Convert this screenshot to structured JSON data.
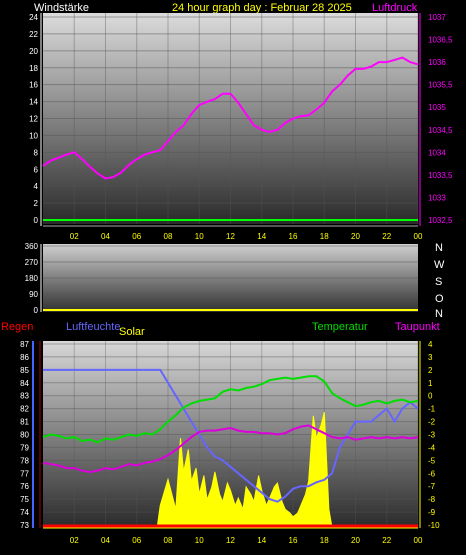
{
  "header": {
    "left_label": "Windstärke",
    "title": "24 hour graph day : Februar 28 2025",
    "right_label": "Luftdruck"
  },
  "direction_labels": [
    "N",
    "W",
    "S",
    "O",
    "N"
  ],
  "bottom_header": {
    "regen": "Regen",
    "luftfeuchte": "Luftfeuchte",
    "solar": "Solar",
    "temperatur": "Temperatur",
    "taupunkt": "Taupunkt"
  },
  "colors": {
    "background": "#000000",
    "axis_label": "#ffffff",
    "tick_label": "#ffffff",
    "x_tick_label": "#ffff00",
    "pressure": "#ff00ff",
    "wind": "#00ff00",
    "humidity": "#6666ff",
    "solar": "#ffff00",
    "temperature": "#00dd00",
    "dewpoint": "#dd00dd",
    "rain": "#ff0000",
    "title": "#ffff00"
  },
  "chart_data": [
    {
      "type": "line",
      "panel": "top",
      "x_ticks": [
        "02",
        "04",
        "06",
        "08",
        "10",
        "12",
        "14",
        "16",
        "18",
        "20",
        "22",
        "00"
      ],
      "y_left_ticks": [
        "0",
        "2",
        "4",
        "6",
        "8",
        "10",
        "12",
        "14",
        "16",
        "18",
        "20",
        "22",
        "24"
      ],
      "y_right_ticks": [
        "1032,5",
        "1033",
        "1033,5",
        "1034",
        "1034,5",
        "1035",
        "1035,5",
        "1036",
        "1036,5",
        "1037"
      ],
      "ylim_left": [
        0,
        24
      ],
      "ylim_right": [
        1032.5,
        1037
      ],
      "xlim": [
        0,
        24
      ],
      "grid": true,
      "series": [
        {
          "name": "Luftdruck",
          "axis": "right",
          "x": [
            0,
            0.5,
            1,
            1.5,
            2,
            2.5,
            3,
            3.5,
            4,
            4.5,
            5,
            5.5,
            6,
            6.5,
            7,
            7.5,
            8,
            8.5,
            9,
            9.5,
            10,
            10.5,
            11,
            11.5,
            12,
            12.5,
            13,
            13.5,
            14,
            14.5,
            15,
            15.5,
            16,
            16.5,
            17,
            17.5,
            18,
            18.5,
            19,
            19.5,
            20,
            20.5,
            21,
            21.5,
            22,
            22.5,
            23,
            23.5,
            24
          ],
          "values": [
            1033.7,
            1033.82,
            1033.88,
            1033.95,
            1034.0,
            1033.85,
            1033.68,
            1033.53,
            1033.42,
            1033.45,
            1033.55,
            1033.72,
            1033.85,
            1033.95,
            1034.0,
            1034.05,
            1034.25,
            1034.45,
            1034.6,
            1034.85,
            1035.05,
            1035.12,
            1035.18,
            1035.3,
            1035.3,
            1035.1,
            1034.85,
            1034.6,
            1034.5,
            1034.45,
            1034.5,
            1034.65,
            1034.75,
            1034.8,
            1034.82,
            1034.95,
            1035.1,
            1035.35,
            1035.5,
            1035.7,
            1035.85,
            1035.85,
            1035.9,
            1036.0,
            1036.0,
            1036.05,
            1036.1,
            1036.0,
            1035.95
          ]
        },
        {
          "name": "Windstärke",
          "axis": "left",
          "x": [
            0,
            24
          ],
          "values": [
            0,
            0
          ]
        }
      ]
    },
    {
      "type": "line",
      "panel": "wind_direction",
      "y_ticks": [
        "360",
        "270",
        "180",
        "90",
        "0"
      ],
      "ylim": [
        0,
        360
      ],
      "xlim": [
        0,
        24
      ],
      "grid": true,
      "series": [
        {
          "x": [
            0,
            24
          ],
          "values": [
            0,
            0
          ]
        }
      ]
    },
    {
      "type": "line",
      "panel": "bottom",
      "x_ticks": [
        "02",
        "04",
        "06",
        "08",
        "10",
        "12",
        "14",
        "16",
        "18",
        "20",
        "22",
        "00"
      ],
      "y_left_ticks": [
        "73",
        "74",
        "75",
        "76",
        "77",
        "78",
        "79",
        "80",
        "81",
        "82",
        "83",
        "84",
        "85",
        "86",
        "87"
      ],
      "y_right_ticks": [
        "-10",
        "-9",
        "-8",
        "-7",
        "-6",
        "-5",
        "-4",
        "-3",
        "-2",
        "-1",
        "0",
        "1",
        "2",
        "3",
        "4"
      ],
      "ylim_left": [
        73,
        87
      ],
      "ylim_right": [
        -10,
        4
      ],
      "xlim": [
        0,
        24
      ],
      "grid": true,
      "series": [
        {
          "name": "Luftfeuchte",
          "axis": "left",
          "x": [
            0,
            7.5,
            7.6,
            8.0,
            8.5,
            9,
            9.5,
            10,
            10.5,
            11,
            11.5,
            12,
            12.5,
            13,
            13.5,
            14,
            14.5,
            15,
            15.5,
            16,
            16.5,
            17,
            17.5,
            18,
            18.5,
            19,
            19.5,
            20,
            20.5,
            21,
            21.5,
            22,
            22.5,
            23,
            23.5,
            24
          ],
          "values": [
            85,
            85,
            84.8,
            84,
            83,
            82,
            81,
            80,
            79,
            78.3,
            78,
            77.5,
            77,
            76.5,
            76,
            75.5,
            75,
            74.8,
            75.2,
            75.8,
            76,
            76,
            76.3,
            76.5,
            77,
            79,
            80,
            81,
            81,
            81,
            81.5,
            82,
            81,
            82,
            82.5,
            82
          ]
        },
        {
          "name": "Solar",
          "axis": "area",
          "x": [
            0,
            7.3,
            7.5,
            8.0,
            8.5,
            8.8,
            9.0,
            9.3,
            9.5,
            9.8,
            10.0,
            10.3,
            10.5,
            10.8,
            11.0,
            11.3,
            11.5,
            11.8,
            12.0,
            12.3,
            12.5,
            12.8,
            13.0,
            13.3,
            13.5,
            13.8,
            14.0,
            14.3,
            14.5,
            14.8,
            15.0,
            15.3,
            15.5,
            15.8,
            16.0,
            16.3,
            16.5,
            16.8,
            17.0,
            17.3,
            17.5,
            17.8,
            18.0,
            18.3,
            18.5,
            24
          ],
          "values": [
            0,
            0,
            12,
            26,
            10,
            48,
            30,
            42,
            25,
            32,
            18,
            28,
            15,
            22,
            30,
            18,
            14,
            24,
            20,
            12,
            16,
            10,
            22,
            18,
            14,
            28,
            20,
            12,
            16,
            22,
            24,
            14,
            10,
            8,
            6,
            8,
            12,
            18,
            25,
            60,
            48,
            55,
            62,
            10,
            0,
            0
          ]
        },
        {
          "name": "Temperatur",
          "axis": "right",
          "x": [
            0,
            0.5,
            1,
            1.5,
            2,
            2.5,
            3,
            3.5,
            4,
            4.5,
            5,
            5.5,
            6,
            6.5,
            7,
            7.5,
            8,
            8.5,
            9,
            9.5,
            10,
            10.5,
            11,
            11.5,
            12,
            12.5,
            13,
            13.5,
            14,
            14.5,
            15,
            15.5,
            16,
            16.5,
            17,
            17.5,
            18,
            18.5,
            19,
            19.5,
            20,
            20.5,
            21,
            21.5,
            22,
            22.5,
            23,
            23.5,
            24
          ],
          "values": [
            -3.2,
            -3.0,
            -3.1,
            -3.3,
            -3.2,
            -3.5,
            -3.4,
            -3.6,
            -3.3,
            -3.4,
            -3.2,
            -3.0,
            -3.1,
            -2.9,
            -3.0,
            -2.6,
            -2.0,
            -1.5,
            -0.9,
            -0.6,
            -0.4,
            -0.3,
            -0.2,
            0.3,
            0.5,
            0.4,
            0.6,
            0.7,
            0.9,
            1.2,
            1.3,
            1.4,
            1.3,
            1.4,
            1.5,
            1.5,
            1.1,
            0.2,
            -0.2,
            -0.5,
            -0.8,
            -0.7,
            -0.5,
            -0.4,
            -0.6,
            -0.4,
            -0.3,
            -0.5,
            -0.4
          ]
        },
        {
          "name": "Taupunkt",
          "axis": "right",
          "x": [
            0,
            0.5,
            1,
            1.5,
            2,
            2.5,
            3,
            3.5,
            4,
            4.5,
            5,
            5.5,
            6,
            6.5,
            7,
            7.5,
            8,
            8.5,
            9,
            9.5,
            10,
            10.5,
            11,
            11.5,
            12,
            12.5,
            13,
            13.5,
            14,
            14.5,
            15,
            15.5,
            16,
            16.5,
            17,
            17.5,
            18,
            18.5,
            19,
            19.5,
            20,
            20.5,
            21,
            21.5,
            22,
            22.5,
            23,
            23.5,
            24
          ],
          "values": [
            -5.2,
            -5.3,
            -5.4,
            -5.6,
            -5.6,
            -5.8,
            -5.9,
            -5.8,
            -5.6,
            -5.7,
            -5.5,
            -5.3,
            -5.4,
            -5.2,
            -5.1,
            -4.9,
            -4.6,
            -4.2,
            -3.7,
            -3.2,
            -2.8,
            -2.7,
            -2.7,
            -2.6,
            -2.5,
            -2.7,
            -2.8,
            -2.8,
            -2.9,
            -2.9,
            -3.0,
            -2.9,
            -2.6,
            -2.4,
            -2.3,
            -2.6,
            -2.9,
            -3.2,
            -3.3,
            -3.2,
            -3.4,
            -3.3,
            -3.2,
            -3.3,
            -3.2,
            -3.3,
            -3.2,
            -3.3,
            -3.2
          ]
        },
        {
          "name": "Regen",
          "axis": "baseline",
          "x": [
            0,
            24
          ],
          "values": [
            0,
            0
          ]
        }
      ]
    }
  ]
}
